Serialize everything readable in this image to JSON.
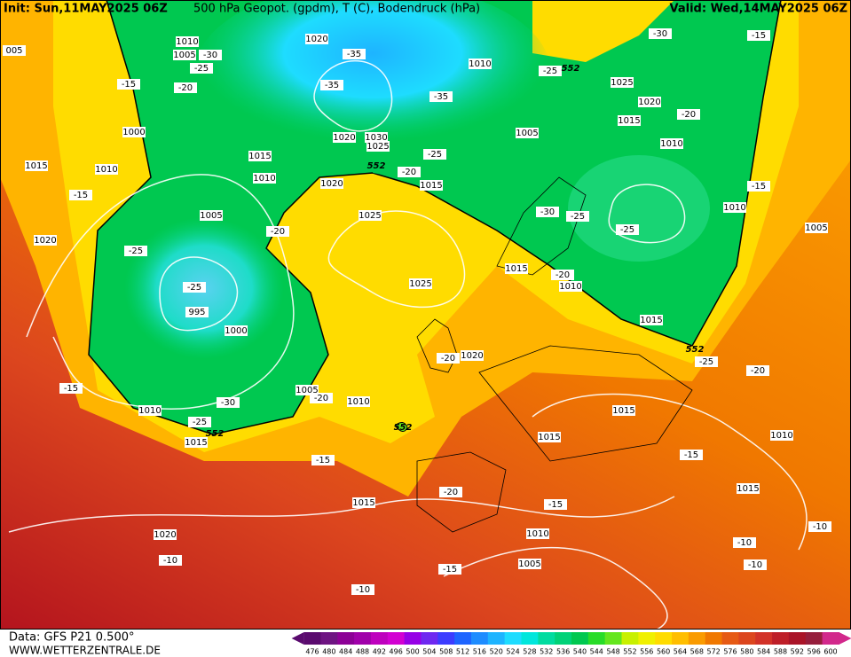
{
  "header": {
    "init": "Init: Sun,11MAY2025 06Z",
    "title": "500 hPa Geopot. (gpdm), T (C), Bodendruck (hPa)",
    "valid": "Valid: Wed,14MAY2025 06Z"
  },
  "footer": {
    "data_source": "Data: GFS P21 0.500°",
    "website": "WWW.WETTERZENTRALE.DE"
  },
  "colorbar": {
    "ticks": [
      476,
      480,
      484,
      488,
      492,
      496,
      500,
      504,
      508,
      512,
      516,
      520,
      524,
      528,
      532,
      536,
      540,
      544,
      548,
      552,
      556,
      560,
      564,
      568,
      572,
      576,
      580,
      584,
      588,
      592,
      596,
      600
    ],
    "colors": [
      "#5a0a6e",
      "#6e1482",
      "#8c0096",
      "#a000aa",
      "#be00be",
      "#d200d2",
      "#9600e6",
      "#6e28f0",
      "#3c3cff",
      "#1e64ff",
      "#1e8cff",
      "#1eb4ff",
      "#1edcff",
      "#00e6dc",
      "#00dca0",
      "#00d278",
      "#00c850",
      "#28dc28",
      "#64e61e",
      "#c8f000",
      "#f0f000",
      "#ffdc00",
      "#ffbe00",
      "#fa9b00",
      "#f07800",
      "#e65a14",
      "#dc461e",
      "#d23228",
      "#be1e28",
      "#aa1428",
      "#961e3c",
      "#d2288c"
    ]
  },
  "map": {
    "isobar_labels": [
      "005",
      "1010",
      "1005",
      "1020",
      "1010",
      "1025",
      "1020",
      "1015",
      "1010",
      "1005",
      "1000",
      "1015",
      "1010",
      "1015",
      "1010",
      "1020",
      "1030",
      "1025",
      "1020",
      "1015",
      "1025",
      "1005",
      "1020",
      "995",
      "1000",
      "1025",
      "1015",
      "1010",
      "1015",
      "1010",
      "1005",
      "1020",
      "1005",
      "1010",
      "1010",
      "1015",
      "1015",
      "1015",
      "1010",
      "1015",
      "1015",
      "1020",
      "1010",
      "1005"
    ],
    "temperature_labels": [
      "-30",
      "-15",
      "-30",
      "-25",
      "-25",
      "-20",
      "-15",
      "-35",
      "-35",
      "-35",
      "-20",
      "-25",
      "-20",
      "-15",
      "-30",
      "-25",
      "-25",
      "-15",
      "-20",
      "-25",
      "-25",
      "-20",
      "-20",
      "-25",
      "-20",
      "-15",
      "-30",
      "-20",
      "-25",
      "-15",
      "-15",
      "-20",
      "-15",
      "-10",
      "-10",
      "-10",
      "-10",
      "-15",
      "-10"
    ],
    "height_labels": [
      "552",
      "552",
      "552",
      "552",
      "552"
    ]
  }
}
